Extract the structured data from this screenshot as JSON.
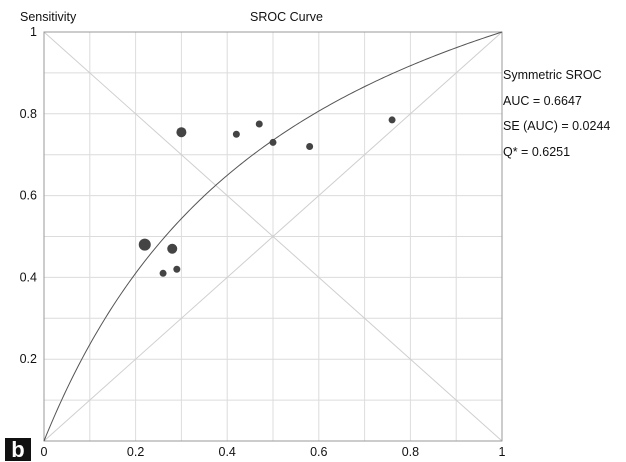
{
  "chart_data": {
    "type": "scatter",
    "title": "SROC Curve",
    "ylabel": "Sensitivity",
    "xlabel": "",
    "xlim": [
      0,
      1
    ],
    "ylim": [
      0,
      1
    ],
    "x_ticks": [
      "0",
      "0.2",
      "0.4",
      "0.6",
      "0.8",
      "1"
    ],
    "y_ticks": [
      "0.2",
      "0.4",
      "0.6",
      "0.8",
      "1"
    ],
    "grid": true,
    "points": [
      {
        "x": 0.22,
        "y": 0.48,
        "size": "large"
      },
      {
        "x": 0.28,
        "y": 0.47,
        "size": "medium"
      },
      {
        "x": 0.29,
        "y": 0.42,
        "size": "small"
      },
      {
        "x": 0.26,
        "y": 0.41,
        "size": "small"
      },
      {
        "x": 0.3,
        "y": 0.755,
        "size": "medium"
      },
      {
        "x": 0.42,
        "y": 0.75,
        "size": "small"
      },
      {
        "x": 0.47,
        "y": 0.775,
        "size": "small"
      },
      {
        "x": 0.5,
        "y": 0.73,
        "size": "small"
      },
      {
        "x": 0.58,
        "y": 0.72,
        "size": "small"
      },
      {
        "x": 0.76,
        "y": 0.785,
        "size": "small"
      }
    ],
    "curve": {
      "name": "Symmetric SROC",
      "auc": 0.6647
    },
    "reference_lines": [
      "diagonal",
      "anti-diagonal"
    ],
    "annotations": [
      "Symmetric SROC",
      "AUC = 0.6647",
      "SE (AUC) = 0.0244",
      "Q* = 0.6251"
    ],
    "panel_label": "b"
  }
}
